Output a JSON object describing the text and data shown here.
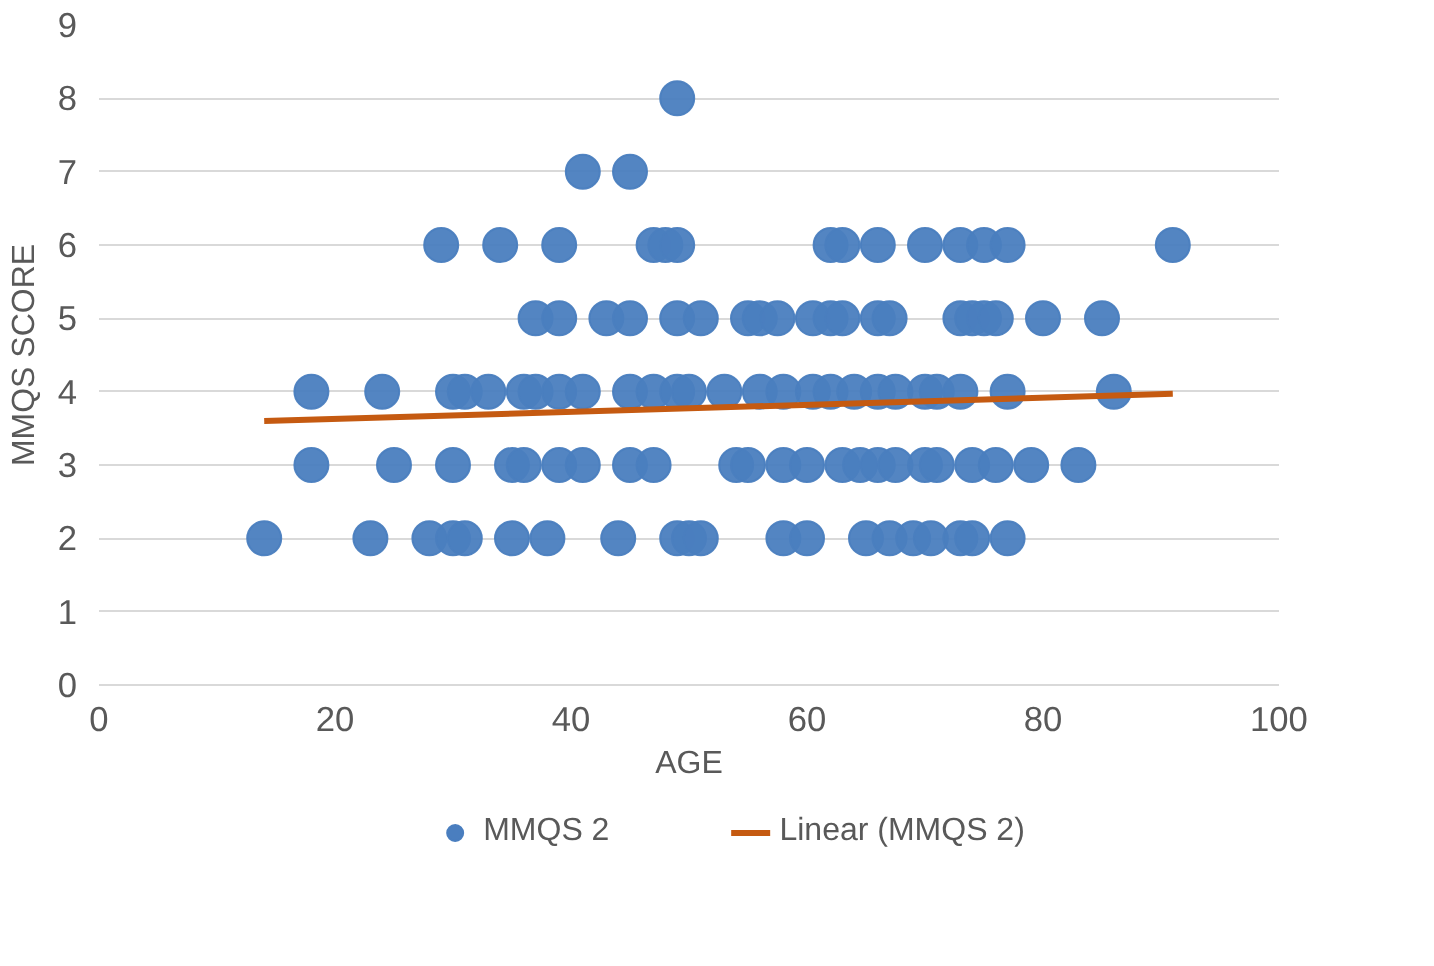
{
  "chart_data": {
    "type": "scatter",
    "xlabel": "AGE",
    "ylabel": "MMQS SCORE",
    "xlim": [
      0,
      100
    ],
    "xticks": [
      0,
      20,
      40,
      60,
      80,
      100
    ],
    "ylim": [
      0,
      9
    ],
    "yticks": [
      0,
      1,
      2,
      3,
      4,
      5,
      6,
      7,
      8,
      9
    ],
    "grid": "y",
    "legend": "bottom",
    "series": [
      {
        "name": "MMQS 2",
        "marker": "circle",
        "color": "#4a7ebf",
        "x": [
          49,
          41,
          45,
          29,
          34,
          39,
          47,
          48,
          49,
          62,
          63,
          66,
          70,
          73,
          75,
          77,
          91,
          37,
          39,
          43,
          45,
          49,
          51,
          55,
          56,
          57.5,
          60.5,
          62,
          63,
          66,
          67,
          73,
          74,
          75,
          76,
          80,
          85,
          18,
          24,
          30,
          31,
          33,
          36,
          37,
          39,
          41,
          45,
          47,
          49,
          50,
          53,
          56,
          58,
          60.5,
          62,
          64,
          66,
          67.5,
          70,
          71,
          73,
          77,
          86,
          18,
          25,
          30,
          35,
          36,
          39,
          41,
          45,
          47,
          54,
          55,
          58,
          60,
          63,
          64.5,
          66,
          67.5,
          70,
          71,
          74,
          76,
          79,
          83,
          14,
          23,
          28,
          30,
          31,
          35,
          38,
          44,
          49,
          50,
          51,
          58,
          60,
          65,
          67,
          69,
          70.5,
          73,
          74,
          77
        ],
        "values": [
          8,
          7,
          7,
          6,
          6,
          6,
          6,
          6,
          6,
          6,
          6,
          6,
          6,
          6,
          6,
          6,
          6,
          5,
          5,
          5,
          5,
          5,
          5,
          5,
          5,
          5,
          5,
          5,
          5,
          5,
          5,
          5,
          5,
          5,
          5,
          5,
          5,
          4,
          4,
          4,
          4,
          4,
          4,
          4,
          4,
          4,
          4,
          4,
          4,
          4,
          4,
          4,
          4,
          4,
          4,
          4,
          4,
          4,
          4,
          4,
          4,
          4,
          4,
          3,
          3,
          3,
          3,
          3,
          3,
          3,
          3,
          3,
          3,
          3,
          3,
          3,
          3,
          3,
          3,
          3,
          3,
          3,
          3,
          3,
          3,
          3,
          2,
          2,
          2,
          2,
          2,
          2,
          2,
          2,
          2,
          2,
          2,
          2,
          2,
          2,
          2,
          2,
          2,
          2,
          2,
          2
        ]
      },
      {
        "name": "Linear (MMQS 2)",
        "type": "line",
        "color": "#c55a11",
        "x": [
          14,
          91
        ],
        "values": [
          3.6,
          3.97
        ]
      }
    ]
  }
}
